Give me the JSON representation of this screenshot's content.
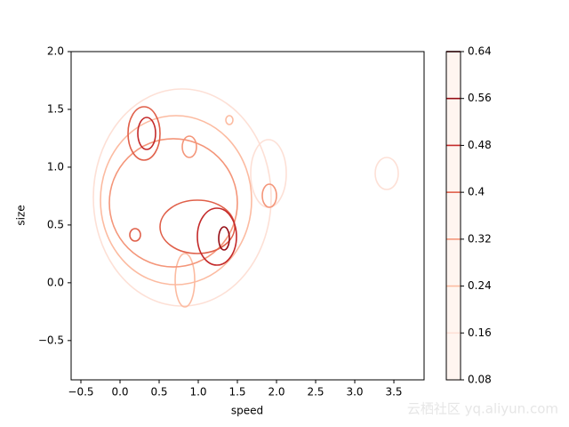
{
  "chart_data": {
    "type": "contour",
    "xlabel": "speed",
    "ylabel": "size",
    "xlim": [
      -0.625,
      3.886
    ],
    "ylim": [
      -0.84,
      2.0
    ],
    "xticks": [
      {
        "value": -0.5,
        "label": "−0.5"
      },
      {
        "value": 0,
        "label": "0.0"
      },
      0.5,
      {
        "value": 1,
        "label": "1.0"
      },
      1.5,
      {
        "value": 2,
        "label": "2.0"
      },
      2.5,
      {
        "value": 3,
        "label": "3.0"
      },
      3.5
    ],
    "yticks": [
      {
        "value": -0.5,
        "label": "−0.5"
      },
      {
        "value": 0,
        "label": "0.0"
      },
      0.5,
      {
        "value": 1,
        "label": "1.0"
      },
      1.5,
      {
        "value": 2,
        "label": "2.0"
      }
    ],
    "levels": [
      0.08,
      0.16,
      0.24,
      0.32,
      0.4,
      0.48,
      0.56,
      0.64
    ],
    "colors": [
      "#fff5f0",
      "#fde0d6",
      "#fcbba1",
      "#f4967a",
      "#e0604a",
      "#c42a2a",
      "#940b13",
      "#67000d"
    ],
    "watermark": "云栖社区 yq.aliyun.com"
  }
}
